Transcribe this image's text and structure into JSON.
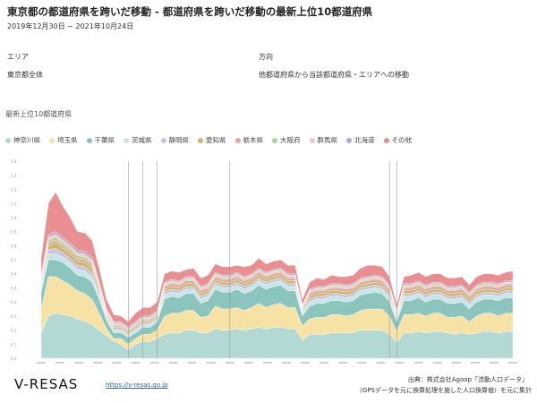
{
  "header": {
    "title": "東京都の都道府県を跨いだ移動 - 都道府県を跨いだ移動の最新上位10都道府県",
    "period": "2019年12月30日 ~ 2021年10月24日"
  },
  "filters": {
    "area_label": "エリア",
    "area_value": "東京都全体",
    "direction_label": "方向",
    "direction_value": "他都道府県から当該都道府県・エリアへの移動"
  },
  "section_title": "最新上位10都道府県",
  "footer": {
    "brand": "V-RESAS",
    "url": "https://v-resas.go.jp",
    "source_line1": "出典：株式会社Agoop「流動人口データ」",
    "source_line2": "（GPSデータを元に換算処理を施した人口換算値）を元に集計"
  },
  "chart_data": {
    "type": "area",
    "stacked": true,
    "title": "",
    "xlabel": "",
    "ylabel": "",
    "ylim": [
      0,
      1.4
    ],
    "y_ticks": [
      0,
      0.1,
      0.2,
      0.3,
      0.4,
      0.5,
      0.6,
      0.7,
      0.8,
      0.9,
      1.0,
      1.1,
      1.2,
      1.3,
      1.4
    ],
    "legend_position": "top-left",
    "grid": false,
    "x_tick_count": 26,
    "series": [
      {
        "name": "神奈川県",
        "color": "#b3d9d5",
        "values": [
          0.18,
          0.3,
          0.32,
          0.31,
          0.3,
          0.28,
          0.26,
          0.24,
          0.2,
          0.16,
          0.12,
          0.1,
          0.06,
          0.1,
          0.12,
          0.12,
          0.14,
          0.17,
          0.18,
          0.18,
          0.2,
          0.2,
          0.18,
          0.18,
          0.21,
          0.2,
          0.2,
          0.21,
          0.2,
          0.21,
          0.22,
          0.21,
          0.22,
          0.22,
          0.21,
          0.21,
          0.13,
          0.17,
          0.17,
          0.17,
          0.18,
          0.18,
          0.18,
          0.18,
          0.2,
          0.2,
          0.2,
          0.2,
          0.17,
          0.11,
          0.18,
          0.18,
          0.19,
          0.18,
          0.19,
          0.19,
          0.18,
          0.17,
          0.18,
          0.17,
          0.18,
          0.19,
          0.19,
          0.18,
          0.19,
          0.19
        ]
      },
      {
        "name": "埼玉県",
        "color": "#f6e2a4",
        "values": [
          0.17,
          0.28,
          0.26,
          0.24,
          0.22,
          0.2,
          0.2,
          0.18,
          0.12,
          0.05,
          0.02,
          0.04,
          0.04,
          0.04,
          0.05,
          0.05,
          0.06,
          0.13,
          0.14,
          0.14,
          0.14,
          0.14,
          0.11,
          0.12,
          0.16,
          0.15,
          0.15,
          0.15,
          0.14,
          0.15,
          0.17,
          0.15,
          0.16,
          0.17,
          0.15,
          0.15,
          0.1,
          0.11,
          0.12,
          0.12,
          0.13,
          0.13,
          0.12,
          0.13,
          0.14,
          0.15,
          0.15,
          0.15,
          0.13,
          0.08,
          0.13,
          0.13,
          0.13,
          0.12,
          0.13,
          0.13,
          0.11,
          0.12,
          0.12,
          0.09,
          0.12,
          0.13,
          0.13,
          0.12,
          0.13,
          0.13
        ]
      },
      {
        "name": "千葉県",
        "color": "#8cc4be",
        "values": [
          0.12,
          0.12,
          0.12,
          0.13,
          0.12,
          0.11,
          0.12,
          0.12,
          0.1,
          0.06,
          0.04,
          0.04,
          0.05,
          0.04,
          0.05,
          0.05,
          0.06,
          0.12,
          0.12,
          0.11,
          0.12,
          0.12,
          0.1,
          0.11,
          0.12,
          0.12,
          0.12,
          0.13,
          0.12,
          0.12,
          0.13,
          0.13,
          0.13,
          0.13,
          0.12,
          0.12,
          0.07,
          0.09,
          0.1,
          0.1,
          0.1,
          0.1,
          0.1,
          0.1,
          0.11,
          0.11,
          0.12,
          0.11,
          0.1,
          0.07,
          0.1,
          0.1,
          0.11,
          0.1,
          0.1,
          0.1,
          0.1,
          0.1,
          0.1,
          0.09,
          0.1,
          0.1,
          0.1,
          0.11,
          0.11,
          0.11
        ]
      },
      {
        "name": "茨城県",
        "color": "#c8e6e8",
        "values": [
          0.03,
          0.04,
          0.04,
          0.04,
          0.04,
          0.04,
          0.04,
          0.04,
          0.03,
          0.02,
          0.02,
          0.02,
          0.01,
          0.02,
          0.02,
          0.02,
          0.02,
          0.03,
          0.03,
          0.03,
          0.03,
          0.03,
          0.03,
          0.03,
          0.03,
          0.03,
          0.03,
          0.03,
          0.03,
          0.03,
          0.03,
          0.03,
          0.03,
          0.03,
          0.03,
          0.03,
          0.02,
          0.03,
          0.03,
          0.03,
          0.03,
          0.03,
          0.03,
          0.03,
          0.03,
          0.03,
          0.03,
          0.03,
          0.03,
          0.02,
          0.03,
          0.03,
          0.03,
          0.03,
          0.03,
          0.03,
          0.03,
          0.03,
          0.03,
          0.03,
          0.03,
          0.03,
          0.03,
          0.03,
          0.03,
          0.03
        ]
      },
      {
        "name": "静岡県",
        "color": "#c9c3dd",
        "values": [
          0.02,
          0.03,
          0.04,
          0.03,
          0.03,
          0.03,
          0.03,
          0.03,
          0.02,
          0.01,
          0.01,
          0.01,
          0.01,
          0.01,
          0.01,
          0.01,
          0.01,
          0.02,
          0.02,
          0.02,
          0.02,
          0.02,
          0.02,
          0.02,
          0.02,
          0.02,
          0.02,
          0.02,
          0.02,
          0.02,
          0.02,
          0.02,
          0.02,
          0.02,
          0.02,
          0.02,
          0.01,
          0.02,
          0.02,
          0.02,
          0.02,
          0.02,
          0.02,
          0.02,
          0.02,
          0.02,
          0.02,
          0.02,
          0.02,
          0.01,
          0.02,
          0.02,
          0.02,
          0.02,
          0.02,
          0.02,
          0.02,
          0.02,
          0.02,
          0.02,
          0.02,
          0.02,
          0.02,
          0.02,
          0.02,
          0.02
        ]
      },
      {
        "name": "愛知県",
        "color": "#c9b86a",
        "values": [
          0.02,
          0.03,
          0.04,
          0.03,
          0.03,
          0.03,
          0.03,
          0.03,
          0.02,
          0.01,
          0.01,
          0.01,
          0.01,
          0.01,
          0.01,
          0.01,
          0.01,
          0.02,
          0.02,
          0.02,
          0.02,
          0.02,
          0.02,
          0.02,
          0.02,
          0.02,
          0.02,
          0.02,
          0.02,
          0.02,
          0.02,
          0.02,
          0.02,
          0.02,
          0.02,
          0.02,
          0.01,
          0.02,
          0.02,
          0.02,
          0.02,
          0.02,
          0.02,
          0.02,
          0.02,
          0.02,
          0.02,
          0.02,
          0.02,
          0.01,
          0.02,
          0.02,
          0.02,
          0.02,
          0.02,
          0.02,
          0.02,
          0.02,
          0.02,
          0.02,
          0.02,
          0.02,
          0.02,
          0.02,
          0.02,
          0.02
        ]
      },
      {
        "name": "栃木県",
        "color": "#eba2a3",
        "values": [
          0.02,
          0.02,
          0.02,
          0.02,
          0.02,
          0.02,
          0.02,
          0.02,
          0.02,
          0.01,
          0.01,
          0.01,
          0.01,
          0.01,
          0.01,
          0.01,
          0.01,
          0.02,
          0.02,
          0.02,
          0.02,
          0.02,
          0.02,
          0.02,
          0.02,
          0.02,
          0.02,
          0.02,
          0.02,
          0.02,
          0.02,
          0.02,
          0.02,
          0.02,
          0.02,
          0.02,
          0.01,
          0.02,
          0.02,
          0.02,
          0.02,
          0.02,
          0.02,
          0.02,
          0.02,
          0.02,
          0.02,
          0.02,
          0.02,
          0.01,
          0.02,
          0.02,
          0.02,
          0.02,
          0.02,
          0.02,
          0.02,
          0.02,
          0.02,
          0.02,
          0.02,
          0.02,
          0.02,
          0.02,
          0.02,
          0.02
        ]
      },
      {
        "name": "大阪府",
        "color": "#a9d88f",
        "values": [
          0.01,
          0.02,
          0.02,
          0.02,
          0.02,
          0.02,
          0.02,
          0.02,
          0.01,
          0.01,
          0.01,
          0.01,
          0.01,
          0.01,
          0.01,
          0.01,
          0.01,
          0.01,
          0.01,
          0.01,
          0.01,
          0.01,
          0.01,
          0.01,
          0.01,
          0.01,
          0.01,
          0.01,
          0.01,
          0.01,
          0.01,
          0.01,
          0.01,
          0.01,
          0.01,
          0.01,
          0.01,
          0.01,
          0.01,
          0.01,
          0.01,
          0.01,
          0.01,
          0.01,
          0.01,
          0.01,
          0.01,
          0.01,
          0.01,
          0.01,
          0.01,
          0.01,
          0.01,
          0.01,
          0.01,
          0.01,
          0.01,
          0.01,
          0.01,
          0.01,
          0.01,
          0.01,
          0.01,
          0.01,
          0.01,
          0.01
        ]
      },
      {
        "name": "群馬県",
        "color": "#f4c6c8",
        "values": [
          0.01,
          0.02,
          0.02,
          0.02,
          0.02,
          0.02,
          0.02,
          0.02,
          0.01,
          0.01,
          0.01,
          0.01,
          0.01,
          0.01,
          0.01,
          0.01,
          0.01,
          0.01,
          0.01,
          0.01,
          0.01,
          0.01,
          0.01,
          0.01,
          0.01,
          0.01,
          0.01,
          0.01,
          0.01,
          0.01,
          0.01,
          0.01,
          0.01,
          0.01,
          0.01,
          0.01,
          0.01,
          0.01,
          0.01,
          0.01,
          0.01,
          0.01,
          0.01,
          0.01,
          0.01,
          0.01,
          0.01,
          0.01,
          0.01,
          0.01,
          0.01,
          0.01,
          0.01,
          0.01,
          0.01,
          0.01,
          0.01,
          0.01,
          0.01,
          0.01,
          0.01,
          0.01,
          0.01,
          0.01,
          0.01,
          0.01
        ]
      },
      {
        "name": "北海道",
        "color": "#b6a9cb",
        "values": [
          0.01,
          0.02,
          0.02,
          0.02,
          0.02,
          0.02,
          0.02,
          0.02,
          0.01,
          0.01,
          0.01,
          0.01,
          0.01,
          0.01,
          0.01,
          0.01,
          0.01,
          0.01,
          0.01,
          0.01,
          0.01,
          0.01,
          0.01,
          0.01,
          0.01,
          0.01,
          0.01,
          0.01,
          0.01,
          0.01,
          0.01,
          0.01,
          0.01,
          0.01,
          0.01,
          0.01,
          0.01,
          0.01,
          0.01,
          0.01,
          0.01,
          0.01,
          0.01,
          0.01,
          0.01,
          0.01,
          0.01,
          0.01,
          0.01,
          0.01,
          0.01,
          0.01,
          0.01,
          0.01,
          0.01,
          0.01,
          0.01,
          0.01,
          0.01,
          0.01,
          0.01,
          0.01,
          0.01,
          0.01,
          0.01,
          0.01
        ]
      },
      {
        "name": "その他",
        "color": "#e98f92",
        "values": [
          0.12,
          0.22,
          0.28,
          0.22,
          0.18,
          0.13,
          0.13,
          0.12,
          0.1,
          0.07,
          0.05,
          0.04,
          0.04,
          0.06,
          0.06,
          0.06,
          0.06,
          0.06,
          0.06,
          0.06,
          0.05,
          0.06,
          0.06,
          0.06,
          0.06,
          0.06,
          0.06,
          0.05,
          0.07,
          0.06,
          0.07,
          0.06,
          0.06,
          0.06,
          0.06,
          0.06,
          0.04,
          0.05,
          0.06,
          0.05,
          0.06,
          0.05,
          0.06,
          0.06,
          0.07,
          0.08,
          0.07,
          0.07,
          0.06,
          0.04,
          0.05,
          0.06,
          0.06,
          0.06,
          0.06,
          0.06,
          0.06,
          0.06,
          0.06,
          0.05,
          0.06,
          0.06,
          0.06,
          0.06,
          0.06,
          0.07
        ]
      }
    ]
  }
}
